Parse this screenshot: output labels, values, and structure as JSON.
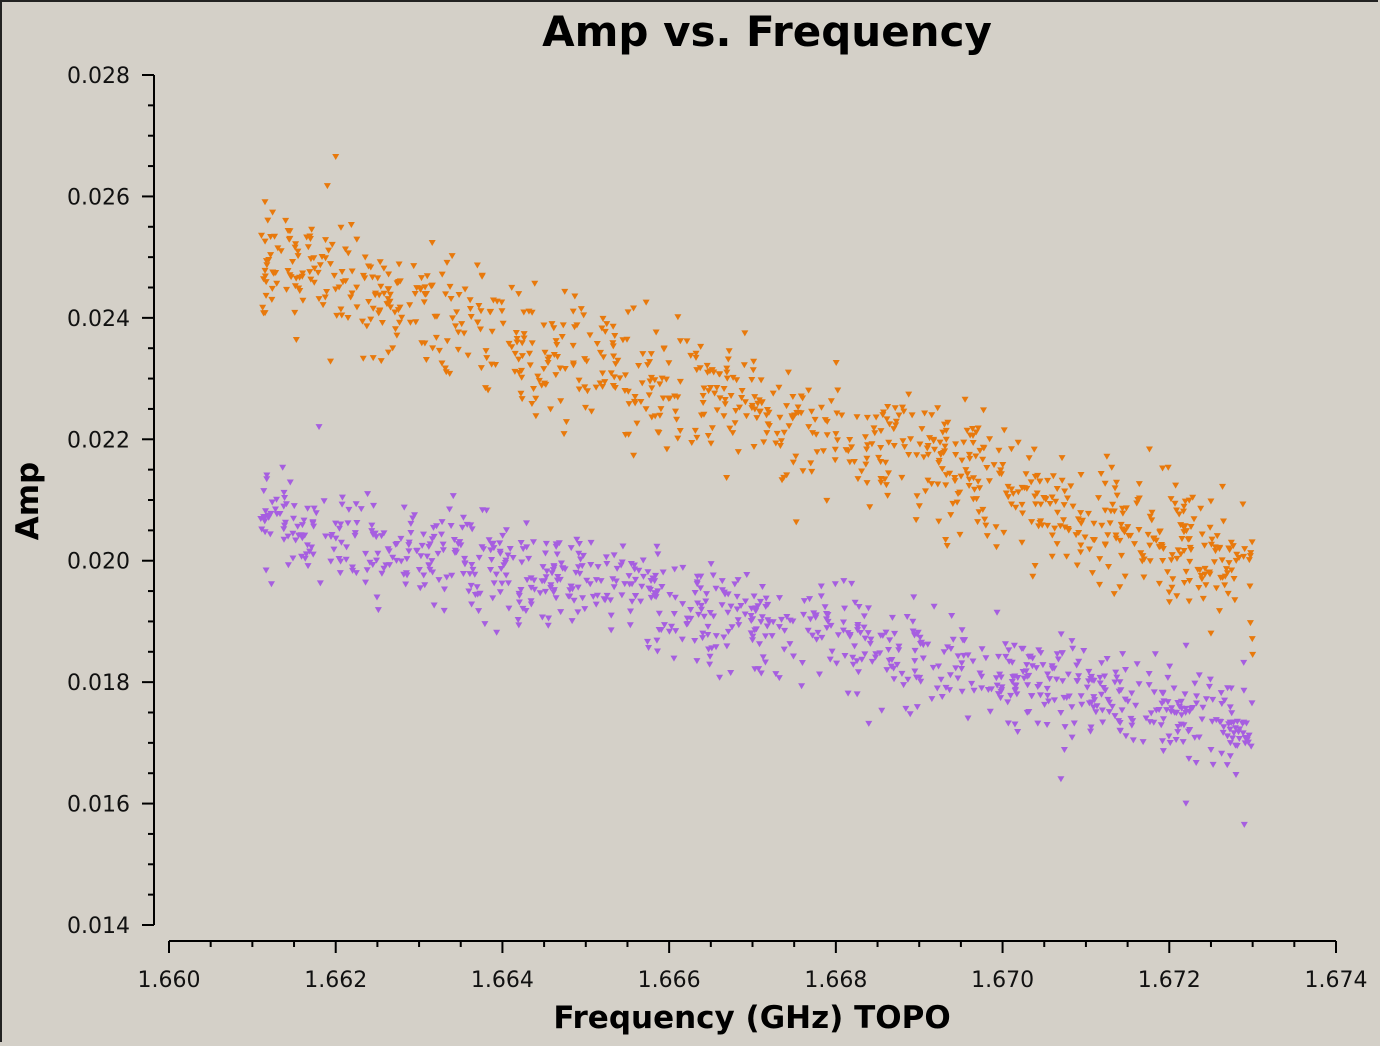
{
  "chart_data": {
    "type": "scatter",
    "title": "Amp vs. Frequency",
    "xlabel": "Frequency (GHz) TOPO",
    "ylabel": "Amp",
    "xlim": [
      1.66,
      1.674
    ],
    "ylim": [
      0.014,
      0.028
    ],
    "x_ticks": [
      "1.660",
      "1.662",
      "1.664",
      "1.666",
      "1.668",
      "1.670",
      "1.672",
      "1.674"
    ],
    "y_ticks": [
      "0.028",
      "0.026",
      "0.024",
      "0.022",
      "0.020",
      "0.018",
      "0.016",
      "0.014"
    ],
    "marker": "triangle-down",
    "grid": false,
    "series": [
      {
        "color": "#e8790c",
        "x_range": [
          1.6611,
          1.673
        ],
        "trend_start": 0.025,
        "trend_end": 0.0199,
        "scatter_sd": 0.00062,
        "points_count": 900,
        "extremes": [
          [
            1.662,
            0.02665
          ],
          [
            1.6619,
            0.02617
          ],
          [
            1.6725,
            0.0188
          ],
          [
            1.673,
            0.01845
          ]
        ]
      },
      {
        "color": "#a65ee0",
        "x_range": [
          1.6611,
          1.673
        ],
        "trend_start": 0.0207,
        "trend_end": 0.0173,
        "scatter_sd": 0.00048,
        "points_count": 900,
        "extremes": [
          [
            1.6618,
            0.0222
          ],
          [
            1.6729,
            0.01565
          ],
          [
            1.6722,
            0.016
          ],
          [
            1.6707,
            0.0164
          ]
        ]
      }
    ]
  }
}
